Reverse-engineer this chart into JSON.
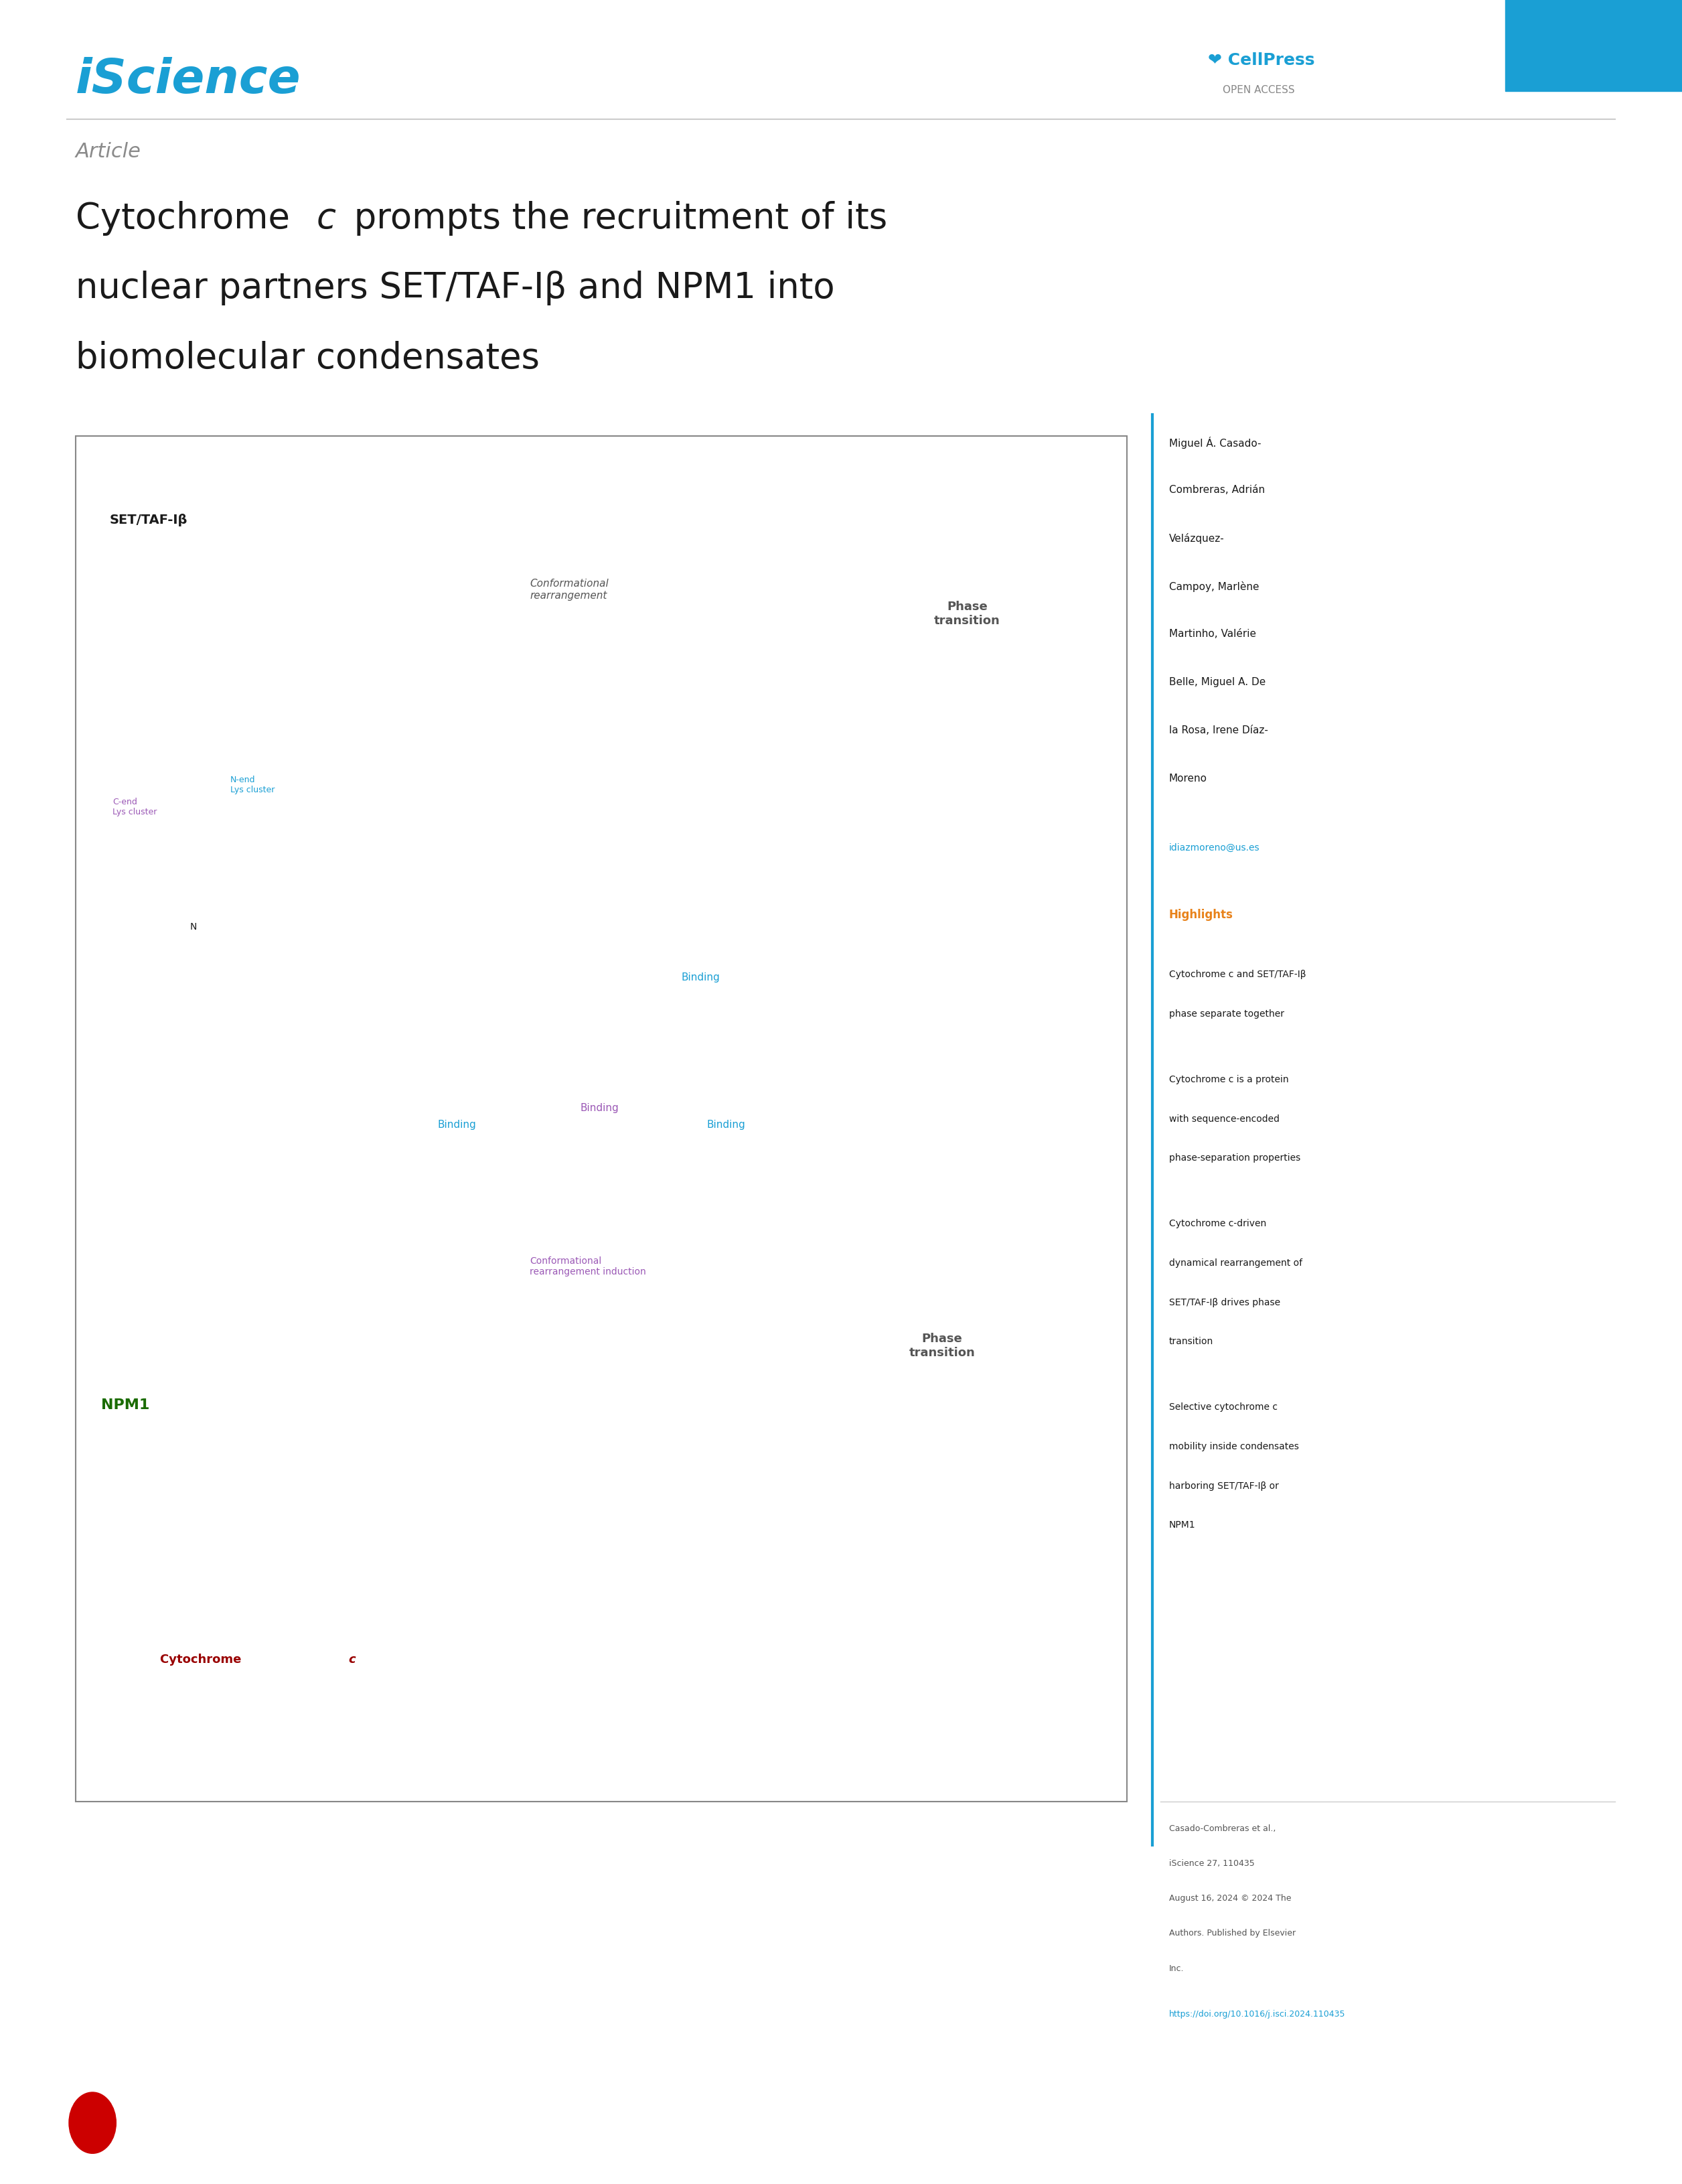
{
  "page_width": 25.12,
  "page_height": 32.62,
  "bg_color": "#ffffff",
  "iscience_color": "#1A9FD4",
  "cellpress_color": "#1A9FD4",
  "cellpress_box_color": "#1A9FD4",
  "article_label": "Article",
  "article_label_color": "#8B8B8B",
  "title_line2": "nuclear partners SET/TAF-Iβ and NPM1 into",
  "title_line3": "biomolecular condensates",
  "title_color": "#1a1a1a",
  "authors_color": "#1a1a1a",
  "email": "idiazmoreno@us.es",
  "email_color": "#1A9FD4",
  "highlights_title": "Highlights",
  "highlights_title_color": "#E8821A",
  "highlight1": "Cytochrome c and SET/TAF-Iβ phase separate together",
  "highlight2": "Cytochrome c is a protein with sequence-encoded phase-separation properties",
  "highlight3": "Cytochrome c-driven dynamical rearrangement of SET/TAF-Iβ drives phase transition",
  "highlight4": "Selective cytochrome c mobility inside condensates harboring SET/TAF-Iβ or NPM1",
  "highlights_color": "#1a1a1a",
  "doi": "https://doi.org/10.1016/j.isci.2024.110435",
  "doi_color": "#1A9FD4",
  "sidebar_line_color": "#1A9FD4",
  "divider_color": "#cccccc",
  "main_panel_border": "#888888",
  "open_access_color": "#888888",
  "purple_color": "#9B59B6",
  "green_color": "#1a6b00",
  "red_color": "#990000",
  "gray_color": "#555555"
}
